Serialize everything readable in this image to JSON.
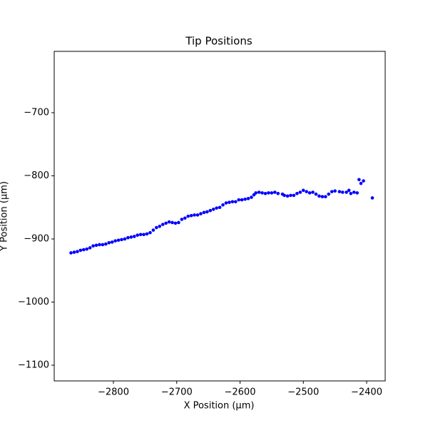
{
  "chart_data": {
    "type": "scatter",
    "title": "Tip Positions",
    "x_label": "X Position (µm)",
    "y_label": "Y Position (µm)",
    "xlim": [
      -2893.5,
      -2370.7
    ],
    "ylim": [
      -1124.9,
      -602.8
    ],
    "xticks": [
      {
        "value": -2800,
        "label": "−2800"
      },
      {
        "value": -2700,
        "label": "−2700"
      },
      {
        "value": -2600,
        "label": "−2600"
      },
      {
        "value": -2500,
        "label": "−2500"
      },
      {
        "value": -2400,
        "label": "−2400"
      }
    ],
    "yticks": [
      {
        "value": -1100,
        "label": "−1100"
      },
      {
        "value": -1000,
        "label": "−1000"
      },
      {
        "value": -900,
        "label": "−900"
      },
      {
        "value": -800,
        "label": "−800"
      },
      {
        "value": -700,
        "label": "−700"
      }
    ],
    "series": [
      {
        "color": "#0000ff",
        "x": [
          -2867,
          -2862,
          -2857,
          -2852,
          -2847,
          -2842,
          -2837,
          -2832,
          -2827,
          -2822,
          -2817,
          -2812,
          -2807,
          -2802,
          -2797,
          -2792,
          -2787,
          -2782,
          -2777,
          -2772,
          -2767,
          -2762,
          -2757,
          -2752,
          -2747,
          -2742,
          -2737,
          -2732,
          -2727,
          -2722,
          -2717,
          -2712,
          -2707,
          -2702,
          -2697,
          -2692,
          -2687,
          -2682,
          -2677,
          -2672,
          -2667,
          -2662,
          -2657,
          -2652,
          -2647,
          -2642,
          -2637,
          -2632,
          -2627,
          -2622,
          -2617,
          -2612,
          -2607,
          -2602,
          -2597,
          -2592,
          -2587,
          -2582,
          -2578,
          -2575,
          -2570,
          -2565,
          -2560,
          -2555,
          -2550,
          -2545,
          -2540,
          -2533,
          -2530,
          -2525,
          -2520,
          -2515,
          -2510,
          -2505,
          -2500,
          -2495,
          -2490,
          -2485,
          -2480,
          -2475,
          -2470,
          -2465,
          -2460,
          -2455,
          -2450,
          -2443,
          -2438,
          -2432,
          -2428,
          -2425,
          -2420,
          -2415,
          -2412,
          -2409,
          -2405,
          -2391
        ],
        "y": [
          -922,
          -921,
          -920,
          -918,
          -917,
          -916,
          -914,
          -911,
          -910,
          -909,
          -909,
          -908,
          -906,
          -905,
          -903,
          -902,
          -901,
          -900,
          -898,
          -897,
          -896,
          -894,
          -893,
          -893,
          -892,
          -890,
          -886,
          -882,
          -880,
          -877,
          -875,
          -873,
          -874,
          -875,
          -874,
          -869,
          -867,
          -864,
          -863,
          -862,
          -862,
          -860,
          -858,
          -857,
          -855,
          -853,
          -851,
          -850,
          -846,
          -843,
          -842,
          -841,
          -841,
          -838,
          -838,
          -837,
          -836,
          -834,
          -830,
          -827,
          -826,
          -827,
          -828,
          -827,
          -827,
          -826,
          -828,
          -829,
          -831,
          -832,
          -831,
          -831,
          -828,
          -826,
          -823,
          -825,
          -827,
          -826,
          -829,
          -832,
          -833,
          -833,
          -829,
          -825,
          -824,
          -825,
          -826,
          -826,
          -823,
          -828,
          -826,
          -827,
          -806,
          -812,
          -808,
          -835
        ]
      }
    ]
  }
}
